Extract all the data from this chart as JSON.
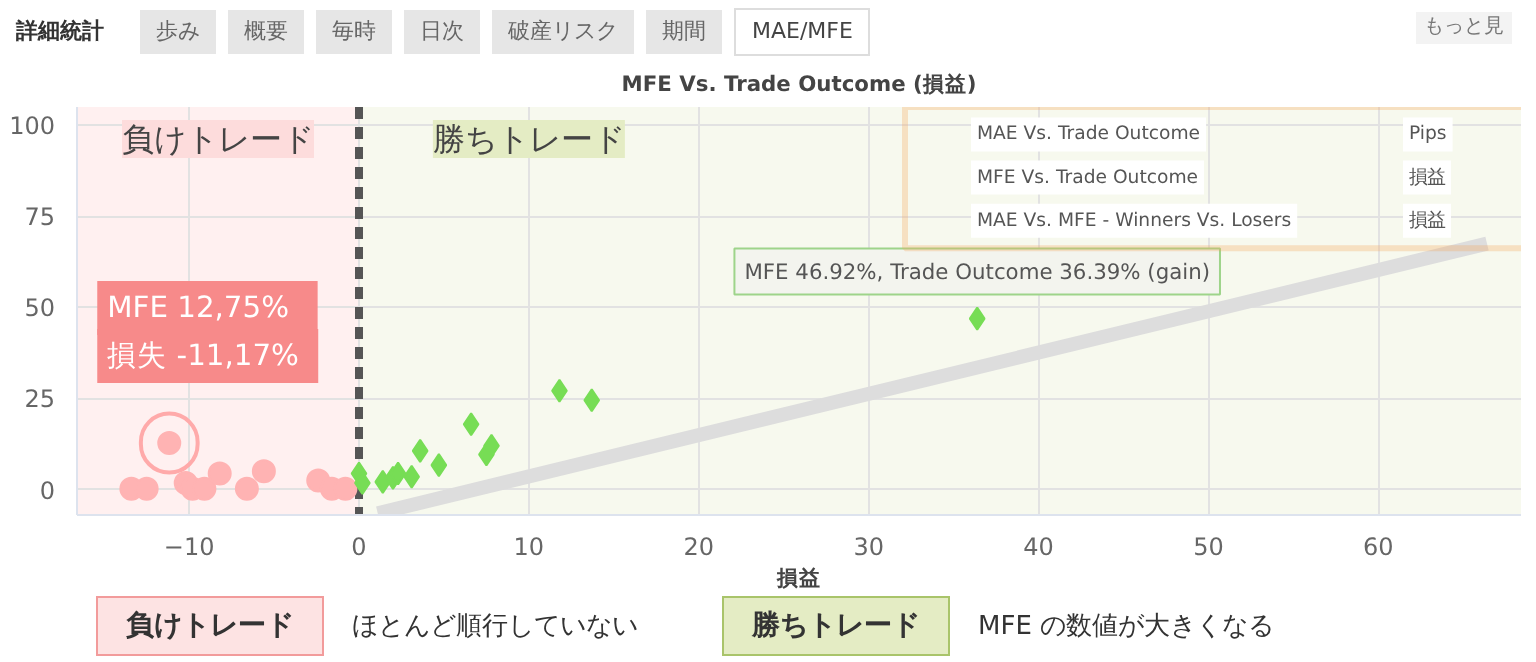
{
  "chart_data": {
    "type": "scatter",
    "title": "MFE Vs. Trade Outcome (損益)",
    "xlabel": "損益",
    "xlim": [
      -16.6,
      68.4
    ],
    "ylim": [
      -7,
      105
    ],
    "xticks": [
      -10,
      0,
      10,
      20,
      30,
      40,
      50,
      60
    ],
    "yticks": [
      0,
      25,
      50,
      75,
      100
    ],
    "grid": true,
    "series": [
      {
        "marker": "circle",
        "color": "#ffb3b3",
        "x": [
          -13.4,
          -12.5,
          -11.17,
          -10.2,
          -9.8,
          -9.1,
          -8.2,
          -6.6,
          -5.6,
          -2.4,
          -1.6,
          -0.8
        ],
        "values": [
          0.2,
          0.2,
          12.75,
          1.8,
          0.2,
          0.2,
          4.4,
          0.2,
          5.0,
          2.5,
          0.2,
          0.2
        ]
      },
      {
        "marker": "diamond",
        "color": "#77dd55",
        "x": [
          0,
          0.2,
          1.4,
          2.0,
          2.3,
          3.1,
          3.6,
          4.7,
          6.6,
          7.5,
          7.8,
          11.8,
          13.7,
          36.39
        ],
        "values": [
          4.4,
          1.8,
          2.1,
          3.2,
          4.4,
          3.5,
          10.6,
          6.7,
          17.9,
          9.6,
          12.0,
          27.1,
          24.5,
          46.92
        ]
      },
      {
        "type": "line",
        "color": "#dddddd",
        "x": [
          1.1,
          66.4
        ],
        "values": [
          -6.5,
          67.5
        ]
      }
    ],
    "ref_lines": [
      {
        "axis": "x",
        "value": 0,
        "color": "#555555",
        "line_style": "dashed"
      }
    ],
    "bands": [
      {
        "axis": "x",
        "from": -16.6,
        "to": 0,
        "label": "負けトレード",
        "color": "#fff0f0"
      },
      {
        "axis": "x",
        "from": 0,
        "to": 68.4,
        "label": "勝ちトレード",
        "color": "#f7f9ee"
      }
    ],
    "annotations": [
      {
        "text": "MFE   12,75%\n損失  -11,17%",
        "x": -11.17,
        "y": 12.75
      },
      {
        "text": "MFE 46.92%, Trade Outcome 36.39% (gain)",
        "x": 36.39,
        "y": 46.92
      },
      "詳細統計",
      "歩み",
      "概要",
      "毎時",
      "日次",
      "破産リスク",
      "期間",
      "MAE/MFE",
      "MAE Vs. Trade Outcome",
      "MFE Vs. Trade Outcome",
      "MAE Vs. MFE - Winners Vs. Losers",
      "Pips",
      "損益",
      "損益",
      "もっと見",
      "負けトレード",
      "ほとんど順行していない",
      "勝ちトレード",
      "MFE の数値が大きくなる"
    ]
  }
}
